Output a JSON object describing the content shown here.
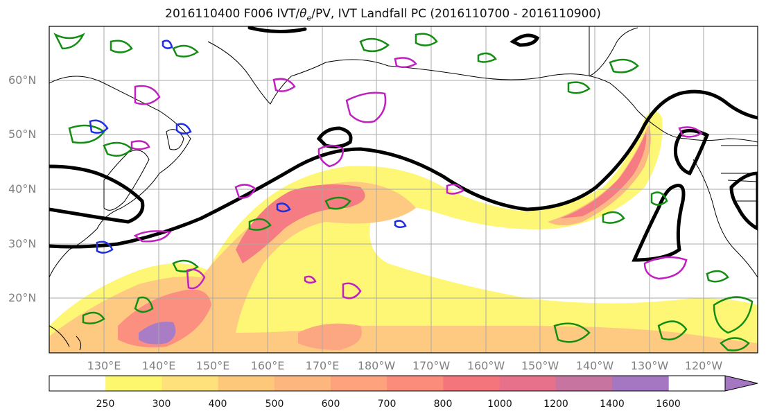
{
  "title": {
    "prefix": "2016110400 F006 IVT/",
    "theta": "θ",
    "sub": "e",
    "suffix": "/PV, IVT Landfall PC (2016110700 - 2016110900)"
  },
  "map": {
    "lat_labels": [
      "60°N",
      "50°N",
      "40°N",
      "30°N",
      "20°N"
    ],
    "lon_labels": [
      "130°E",
      "140°E",
      "150°E",
      "160°E",
      "170°E",
      "180°W",
      "170°W",
      "160°W",
      "150°W",
      "140°W",
      "130°W",
      "120°W"
    ]
  },
  "colorbar": {
    "ticks": [
      "250",
      "300",
      "400",
      "500",
      "600",
      "700",
      "800",
      "1000",
      "1200",
      "1400",
      "1600"
    ],
    "colors": [
      "#ffffff",
      "#fdf76e",
      "#fee17a",
      "#fec87b",
      "#fdb67e",
      "#fda27c",
      "#fb8b7a",
      "#f5757c",
      "#e7718a",
      "#c774a0",
      "#a577c3"
    ]
  }
}
